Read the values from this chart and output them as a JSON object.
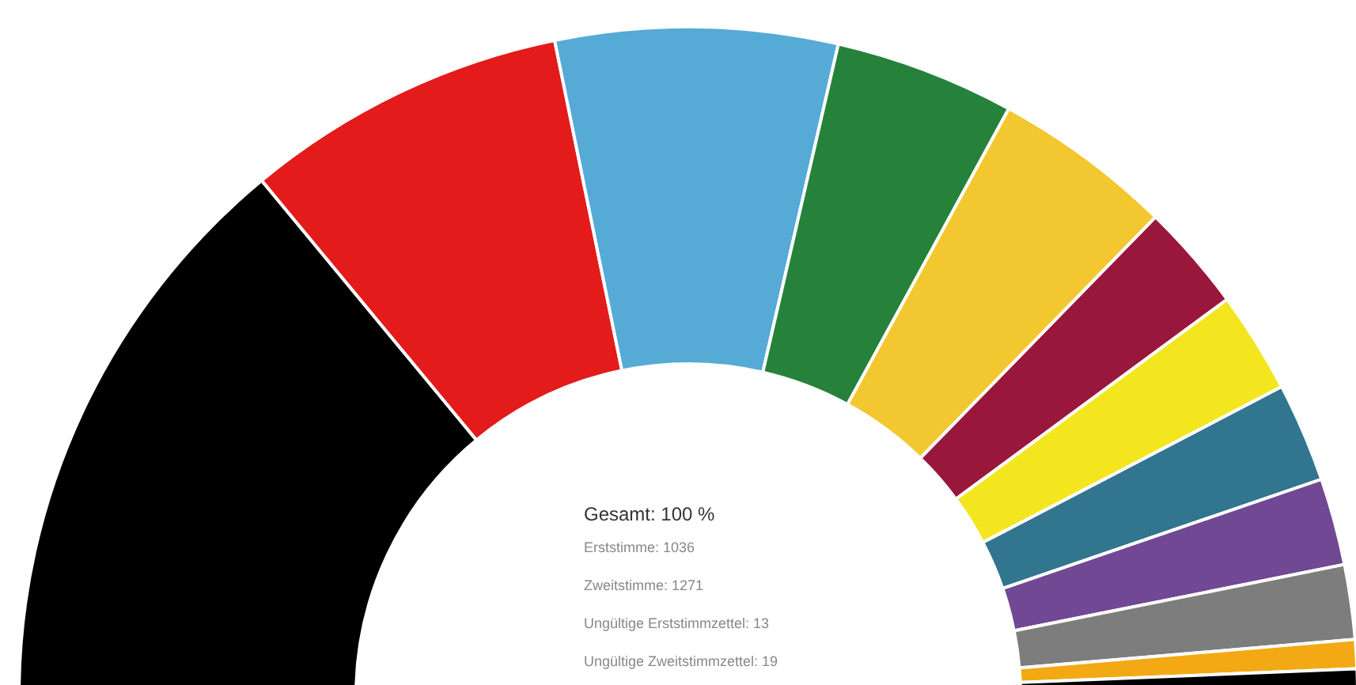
{
  "chart_data": {
    "type": "donut",
    "title": "Gesamt: 100 %",
    "annotations": [
      "Erststimme: 1036",
      "Zweitstimme: 1271",
      "Ungültige Erststimmzettel: 13",
      "Ungültige Zweitstimmzettel: 19"
    ],
    "categories": [
      null,
      null,
      null,
      null,
      null,
      null,
      null,
      null,
      null,
      null,
      null,
      null
    ],
    "values": [
      28,
      15.6,
      13.6,
      8.7,
      8.7,
      5.2,
      4.9,
      4.8,
      4.2,
      3.6,
      1.4,
      1.3
    ],
    "colors": [
      "#000000",
      "#e31b1b",
      "#56aad6",
      "#26823a",
      "#f3c72f",
      "#99173b",
      "#f3e61f",
      "#31758e",
      "#704893",
      "#7d7d7d",
      "#f3a914",
      "#000000"
    ]
  }
}
